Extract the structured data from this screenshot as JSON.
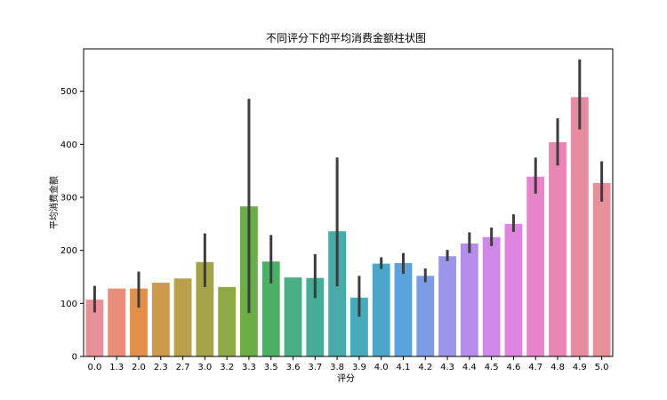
{
  "chart_data": {
    "type": "bar",
    "title": "不同评分下的平均消费金额柱状图",
    "xlabel": "评分",
    "ylabel": "平均消费金额",
    "ylim": [
      0,
      580
    ],
    "yticks": [
      0,
      100,
      200,
      300,
      400,
      500
    ],
    "grid": false,
    "categories": [
      "0.0",
      "1.3",
      "2.0",
      "2.3",
      "2.7",
      "3.0",
      "3.2",
      "3.3",
      "3.5",
      "3.6",
      "3.7",
      "3.8",
      "3.9",
      "4.0",
      "4.1",
      "4.2",
      "4.3",
      "4.4",
      "4.5",
      "4.6",
      "4.7",
      "4.8",
      "4.9",
      "5.0"
    ],
    "values": [
      107,
      128,
      128,
      139,
      147,
      178,
      131,
      283,
      179,
      149,
      148,
      236,
      111,
      175,
      176,
      152,
      189,
      213,
      225,
      250,
      339,
      404,
      489,
      327
    ],
    "error_low": [
      83,
      null,
      92,
      null,
      null,
      131,
      null,
      82,
      138,
      null,
      110,
      132,
      75,
      165,
      156,
      140,
      180,
      195,
      208,
      235,
      307,
      360,
      428,
      292
    ],
    "error_high": [
      133,
      null,
      160,
      null,
      null,
      232,
      null,
      486,
      229,
      null,
      193,
      375,
      152,
      187,
      195,
      166,
      201,
      234,
      243,
      268,
      375,
      449,
      560,
      368
    ],
    "colors": [
      "#e8909a",
      "#e88f7c",
      "#e3904a",
      "#cf9a47",
      "#b9a04a",
      "#a4a34a",
      "#8daa47",
      "#6bae48",
      "#4ab065",
      "#4aae86",
      "#47ad99",
      "#48abaa",
      "#48aabb",
      "#4aa7cb",
      "#5aa3dd",
      "#7c9de6",
      "#9d95e8",
      "#b78deb",
      "#cf87ea",
      "#e184e0",
      "#e685c9",
      "#e887b3",
      "#e98ba0",
      "#e8909a"
    ]
  }
}
